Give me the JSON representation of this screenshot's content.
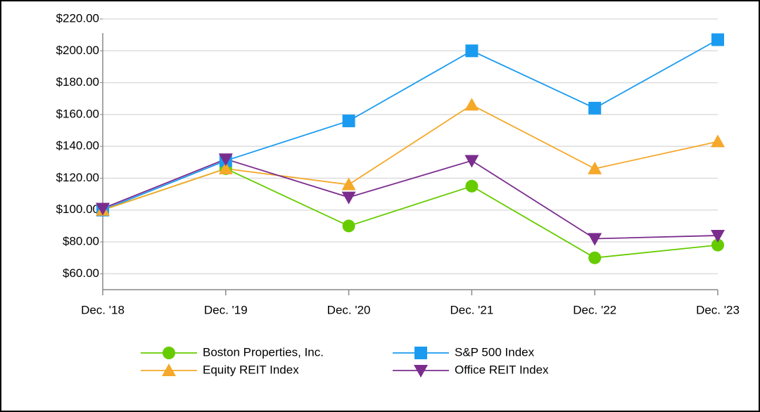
{
  "chart_data": {
    "type": "line",
    "categories": [
      "Dec. '18",
      "Dec. '19",
      "Dec. '20",
      "Dec. '21",
      "Dec. '22",
      "Dec. '23"
    ],
    "series": [
      {
        "name": "Boston Properties, Inc.",
        "color": "#66cc00",
        "marker": "circle",
        "values": [
          100,
          126,
          90,
          115,
          70,
          78
        ]
      },
      {
        "name": "S&P 500 Index",
        "color": "#1a9bf0",
        "marker": "square",
        "values": [
          100,
          131,
          156,
          200,
          164,
          207
        ]
      },
      {
        "name": "Equity REIT Index",
        "color": "#f5a82a",
        "marker": "triangle-up",
        "values": [
          100,
          126,
          116,
          166,
          126,
          143
        ]
      },
      {
        "name": "Office REIT Index",
        "color": "#7b2d8e",
        "marker": "triangle-down",
        "values": [
          101,
          132,
          108,
          131,
          82,
          84
        ]
      }
    ],
    "ylim": [
      50,
      220
    ],
    "yticks": [
      {
        "value": 60,
        "label": "$60.00"
      },
      {
        "value": 80,
        "label": "$80.00"
      },
      {
        "value": 100,
        "label": "$100.00"
      },
      {
        "value": 120,
        "label": "$120.00"
      },
      {
        "value": 140,
        "label": "$140.00"
      },
      {
        "value": 160,
        "label": "$160.00"
      },
      {
        "value": 180,
        "label": "$180.00"
      },
      {
        "value": 200,
        "label": "$200.00"
      },
      {
        "value": 220,
        "label": "$220.00"
      }
    ],
    "grid": true
  }
}
